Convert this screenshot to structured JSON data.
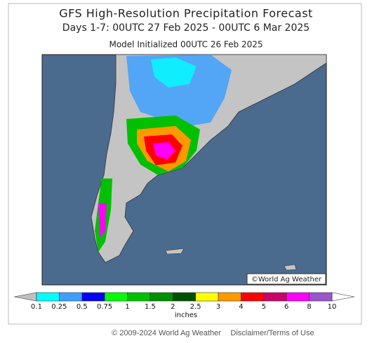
{
  "header": {
    "title": "GFS High-Resolution Precipitation Forecast",
    "subtitle": "Days 1-7: 00UTC 27 Feb 2025 - 00UTC 6 Mar 2025",
    "initialized": "Model Initialized 00UTC 26 Feb 2025"
  },
  "map": {
    "watermark": "©World Ag Weather"
  },
  "legend": {
    "levels": [
      0.1,
      0.25,
      0.5,
      0.75,
      1,
      1.5,
      2,
      2.5,
      3,
      4,
      5,
      6,
      8,
      10
    ],
    "colors": [
      "#00ffff",
      "#3fa0ff",
      "#0000ff",
      "#00ff00",
      "#00c000",
      "#009000",
      "#005000",
      "#ffff00",
      "#ff9900",
      "#ff0000",
      "#cc0066",
      "#ff00ff",
      "#9955cc"
    ],
    "under_color": "#c0c0c0",
    "over_color": "#ffffff",
    "unit": "inches"
  },
  "footer": {
    "copyright": "© 2009-2024 World Ag Weather",
    "link": "Disclaimer/Terms of Use"
  }
}
